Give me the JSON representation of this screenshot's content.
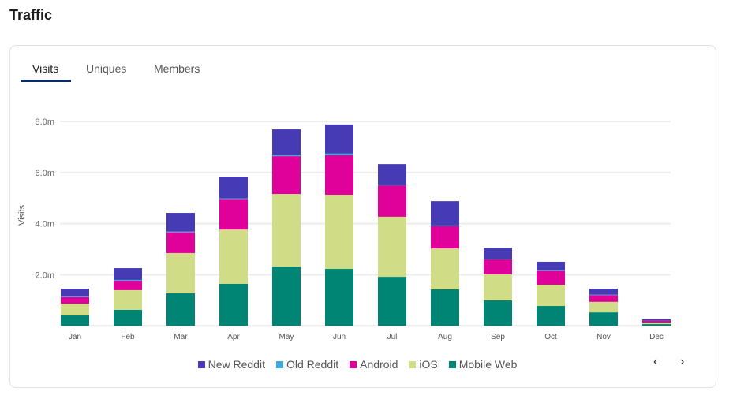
{
  "header": {
    "title": "Traffic"
  },
  "tabs": [
    {
      "label": "Visits",
      "active": true
    },
    {
      "label": "Uniques"
    },
    {
      "label": "Members"
    }
  ],
  "pager": {
    "prev": "‹",
    "next": "›"
  },
  "chart_data": {
    "type": "bar",
    "stacked": true,
    "ylabel": "Visits",
    "ylim": [
      0,
      8000000
    ],
    "yticks": [
      "2.0m",
      "4.0m",
      "6.0m",
      "8.0m"
    ],
    "ytick_values": [
      2,
      4,
      6,
      8
    ],
    "unit": "millions",
    "grid": true,
    "legend": "bottom",
    "categories": [
      "Jan",
      "Feb",
      "Mar",
      "Apr",
      "May",
      "Jun",
      "Jul",
      "Aug",
      "Sep",
      "Oct",
      "Nov",
      "Dec"
    ],
    "series": [
      {
        "name": "Mobile Web",
        "color": "#008575",
        "values": [
          0.41,
          0.63,
          1.28,
          1.65,
          2.32,
          2.23,
          1.92,
          1.43,
          1.0,
          0.78,
          0.53,
          0.07
        ]
      },
      {
        "name": "iOS",
        "color": "#d0dc86",
        "values": [
          0.46,
          0.77,
          1.57,
          2.12,
          2.84,
          2.9,
          2.35,
          1.6,
          1.02,
          0.83,
          0.41,
          0.06
        ]
      },
      {
        "name": "Android",
        "color": "#e0009a",
        "values": [
          0.26,
          0.37,
          0.81,
          1.19,
          1.48,
          1.55,
          1.23,
          0.88,
          0.59,
          0.54,
          0.27,
          0.07
        ]
      },
      {
        "name": "Old Reddit",
        "color": "#3ca8e0",
        "values": [
          0.02,
          0.03,
          0.03,
          0.03,
          0.06,
          0.06,
          0.03,
          0.02,
          0.02,
          0.03,
          0.01,
          0.0
        ]
      },
      {
        "name": "New Reddit",
        "color": "#463bb4",
        "values": [
          0.31,
          0.46,
          0.73,
          0.85,
          0.99,
          1.14,
          0.8,
          0.95,
          0.43,
          0.33,
          0.24,
          0.06
        ]
      }
    ],
    "legend_order": [
      "New Reddit",
      "Old Reddit",
      "Android",
      "iOS",
      "Mobile Web"
    ]
  }
}
